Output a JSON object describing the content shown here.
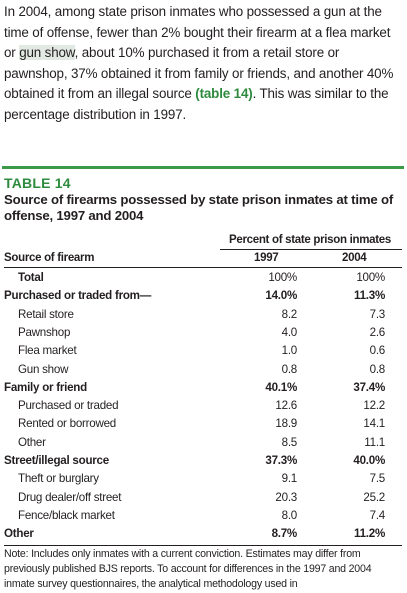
{
  "intro": {
    "part1": "In 2004, among state prison inmates who possessed a gun at the time of offense, fewer than 2% bought their firearm at a flea market or ",
    "highlight": "gun show",
    "part2": ", about 10% purchased it from a retail store or pawnshop, 37% obtained it from family or friends, and another 40% obtained it from an illegal source ",
    "ref": "(table 14)",
    "part3": ". This was similar to the percentage distribution in 1997."
  },
  "table": {
    "label": "TABLE 14",
    "title": "Source of firearms possessed by state prison inmates at time of offense, 1997 and 2004",
    "column_group": "Percent of state prison inmates",
    "row_header": "Source of firearm",
    "col_1997": "1997",
    "col_2004": "2004",
    "rows": [
      {
        "label": "Total",
        "v1997": "100%",
        "v2004": "100%"
      },
      {
        "label": "Purchased or traded from—",
        "v1997": "14.0%",
        "v2004": "11.3%"
      },
      {
        "label": "Retail store",
        "v1997": "8.2",
        "v2004": "7.3"
      },
      {
        "label": "Pawnshop",
        "v1997": "4.0",
        "v2004": "2.6"
      },
      {
        "label": "Flea market",
        "v1997": "1.0",
        "v2004": "0.6"
      },
      {
        "label": "Gun show",
        "v1997": "0.8",
        "v2004": "0.8"
      },
      {
        "label": "Family or friend",
        "v1997": "40.1%",
        "v2004": "37.4%"
      },
      {
        "label": "Purchased or traded",
        "v1997": "12.6",
        "v2004": "12.2"
      },
      {
        "label": "Rented or borrowed",
        "v1997": "18.9",
        "v2004": "14.1"
      },
      {
        "label": "Other",
        "v1997": "8.5",
        "v2004": "11.1"
      },
      {
        "label": "Street/illegal source",
        "v1997": "37.3%",
        "v2004": "40.0%"
      },
      {
        "label": "Theft or burglary",
        "v1997": "9.1",
        "v2004": "7.5"
      },
      {
        "label": "Drug dealer/off street",
        "v1997": "20.3",
        "v2004": "25.2"
      },
      {
        "label": "Fence/black market",
        "v1997": "8.0",
        "v2004": "7.4"
      },
      {
        "label": "Other",
        "v1997": "8.7%",
        "v2004": "11.2%"
      }
    ],
    "note": "Note: Includes only inmates with a current conviction. Estimates may differ from previously published BJS reports. To account for differences in the 1997 and 2004 inmate survey questionnaires, the analytical methodology used in"
  },
  "colors": {
    "accent_green": "#2e8b3e",
    "highlight_bg": "#e2e9e2",
    "text": "#231f20"
  }
}
